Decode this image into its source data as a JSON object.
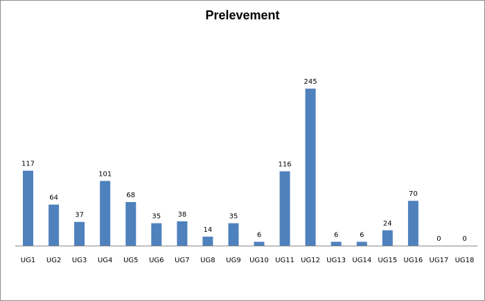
{
  "chart_data": {
    "type": "bar",
    "title": "Prelevement",
    "xlabel": "",
    "ylabel": "",
    "categories": [
      "UG1",
      "UG2",
      "UG3",
      "UG4",
      "UG5",
      "UG6",
      "UG7",
      "UG8",
      "UG9",
      "UG10",
      "UG11",
      "UG12",
      "UG13",
      "UG14",
      "UG15",
      "UG16",
      "UG17",
      "UG18"
    ],
    "values": [
      117,
      64,
      37,
      101,
      68,
      35,
      38,
      14,
      35,
      6,
      116,
      245,
      6,
      6,
      24,
      70,
      0,
      0
    ],
    "ylim": [
      0,
      270
    ],
    "grid": false,
    "show_data_labels": true,
    "legend": "none",
    "bar_color": "#4F81BD"
  }
}
